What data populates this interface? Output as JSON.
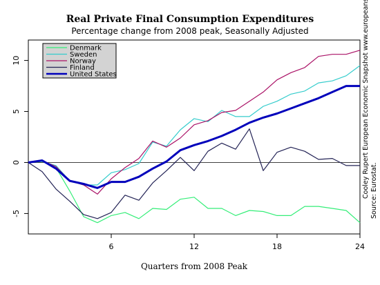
{
  "chart_data": {
    "type": "line",
    "title": "Real Private Final Consumption Expenditures",
    "subtitle": "Percentage change from 2008 peak, Seasonally Adjusted",
    "xlabel": "Quarters from 2008 Peak",
    "ylabel": "",
    "xlim": [
      0,
      24
    ],
    "ylim": [
      -7,
      12
    ],
    "x_ticks": [
      6,
      12,
      18,
      24
    ],
    "y_ticks": [
      -5,
      0,
      5,
      10
    ],
    "zero_line": true,
    "grid": false,
    "legend_position": "top-left",
    "credit_lines": [
      "Cooley Rupert European Economic Snapshot  www.europeansnapshot.com",
      "Source: Eurostat."
    ],
    "x": [
      0,
      1,
      2,
      3,
      4,
      5,
      6,
      7,
      8,
      9,
      10,
      11,
      12,
      13,
      14,
      15,
      16,
      17,
      18,
      19,
      20,
      21,
      22,
      23,
      24
    ],
    "series": [
      {
        "name": "Denmark",
        "color": "#33ee77",
        "width": 1.2,
        "values": [
          0,
          0.1,
          -0.5,
          -2.8,
          -5.3,
          -5.9,
          -5.2,
          -4.9,
          -5.5,
          -4.5,
          -4.6,
          -3.6,
          -3.4,
          -4.5,
          -4.5,
          -5.2,
          -4.7,
          -4.8,
          -5.2,
          -5.2,
          -4.3,
          -4.3,
          -4.5,
          -4.7,
          -5.9
        ]
      },
      {
        "name": "Sweden",
        "color": "#33cccc",
        "width": 1.2,
        "values": [
          0,
          0.1,
          -0.3,
          -1.8,
          -2.2,
          -2.2,
          -1.0,
          -0.7,
          -0.1,
          2.0,
          1.6,
          3.2,
          4.3,
          4.0,
          5.1,
          4.5,
          4.5,
          5.5,
          6.0,
          6.7,
          7.0,
          7.8,
          8.0,
          8.5,
          9.5
        ]
      },
      {
        "name": "Norway",
        "color": "#aa1166",
        "width": 1.2,
        "values": [
          0,
          0.2,
          -0.4,
          -1.8,
          -2.2,
          -3.1,
          -1.6,
          -0.5,
          0.4,
          2.1,
          1.5,
          2.4,
          3.7,
          4.1,
          4.9,
          5.1,
          6.0,
          6.9,
          8.1,
          8.8,
          9.3,
          10.4,
          10.6,
          10.6,
          11.0
        ]
      },
      {
        "name": "Finland",
        "color": "#222255",
        "width": 1.2,
        "values": [
          0,
          -0.9,
          -2.6,
          -3.8,
          -5.1,
          -5.5,
          -4.9,
          -3.2,
          -3.7,
          -2.0,
          -0.8,
          0.5,
          -0.8,
          1.1,
          1.9,
          1.3,
          3.3,
          -0.8,
          1.0,
          1.5,
          1.1,
          0.3,
          0.4,
          -0.3,
          -0.3
        ]
      },
      {
        "name": "United States",
        "color": "#0000bb",
        "width": 3,
        "values": [
          0,
          0.2,
          -0.6,
          -1.8,
          -2.1,
          -2.5,
          -1.9,
          -1.9,
          -1.4,
          -0.6,
          0.1,
          1.2,
          1.7,
          2.1,
          2.6,
          3.2,
          3.9,
          4.4,
          4.8,
          5.3,
          5.8,
          6.3,
          6.9,
          7.5,
          7.5
        ]
      }
    ]
  }
}
